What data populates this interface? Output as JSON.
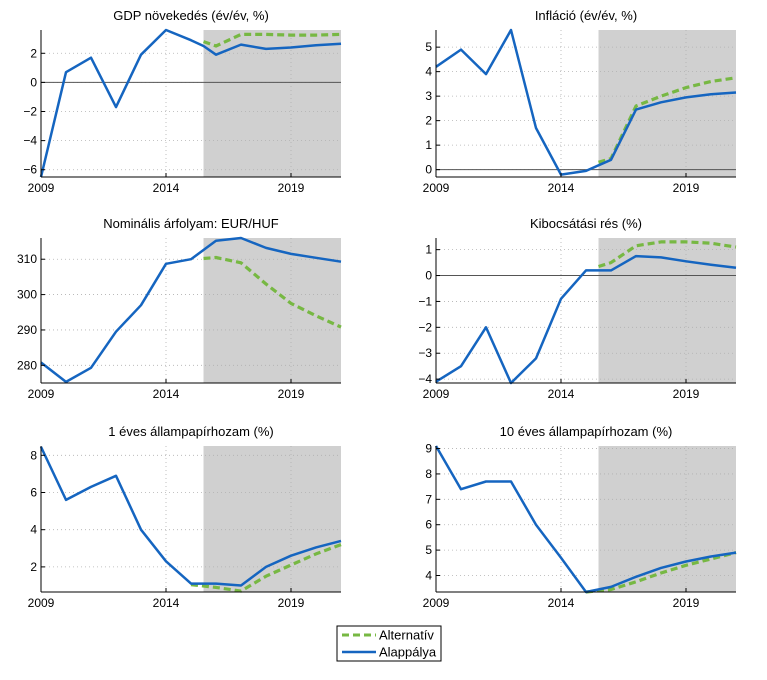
{
  "colors": {
    "alternative": "#77b843",
    "baseline": "#1565c0",
    "forecast_shade": "#d0d0d0",
    "zero_line": "#555555",
    "grid": "#b0b0b0"
  },
  "legend": {
    "alternative_label": "Alternatív",
    "baseline_label": "Alappálya"
  },
  "chart_data": [
    {
      "type": "line",
      "title": "GDP növekedés (év/év, %)",
      "xlabel": "",
      "ylabel": "",
      "xlim": [
        2009,
        2021
      ],
      "ylim": [
        -6.5,
        3.6
      ],
      "yticks": [
        -6,
        -4,
        -2,
        0,
        2
      ],
      "xticks": [
        2009,
        2014,
        2019
      ],
      "zero_line": true,
      "forecast_start": 2015.5,
      "grid": true,
      "series": [
        {
          "name": "Alternatív",
          "style": "dashed",
          "x": [
            2015.5,
            2016,
            2017,
            2018,
            2019,
            2020,
            2021
          ],
          "y": [
            2.8,
            2.5,
            3.3,
            3.3,
            3.25,
            3.25,
            3.3
          ]
        },
        {
          "name": "Alappálya",
          "style": "solid",
          "x": [
            2009,
            2010,
            2011,
            2012,
            2013,
            2014,
            2015,
            2015.5,
            2016,
            2017,
            2018,
            2019,
            2020,
            2021
          ],
          "y": [
            -6.5,
            0.7,
            1.7,
            -1.7,
            1.9,
            3.6,
            2.9,
            2.5,
            1.9,
            2.6,
            2.3,
            2.4,
            2.55,
            2.65
          ]
        }
      ]
    },
    {
      "type": "line",
      "title": "Infláció (év/év, %)",
      "xlabel": "",
      "ylabel": "",
      "xlim": [
        2009,
        2021
      ],
      "ylim": [
        -0.3,
        5.7
      ],
      "yticks": [
        0,
        1,
        2,
        3,
        4,
        5
      ],
      "xticks": [
        2009,
        2014,
        2019
      ],
      "zero_line": true,
      "forecast_start": 2015.5,
      "grid": true,
      "series": [
        {
          "name": "Alternatív",
          "style": "dashed",
          "x": [
            2015.5,
            2016,
            2017,
            2018,
            2019,
            2020,
            2021
          ],
          "y": [
            0.3,
            0.45,
            2.6,
            3.0,
            3.35,
            3.6,
            3.75
          ]
        },
        {
          "name": "Alappálya",
          "style": "solid",
          "x": [
            2009,
            2010,
            2011,
            2012,
            2013,
            2014,
            2015,
            2016,
            2017,
            2018,
            2019,
            2020,
            2021
          ],
          "y": [
            4.2,
            4.9,
            3.9,
            5.7,
            1.7,
            -0.2,
            -0.05,
            0.4,
            2.45,
            2.75,
            2.95,
            3.08,
            3.15
          ]
        }
      ]
    },
    {
      "type": "line",
      "title": "Nominális árfolyam: EUR/HUF",
      "xlabel": "",
      "ylabel": "",
      "xlim": [
        2009,
        2021
      ],
      "ylim": [
        275,
        316
      ],
      "yticks": [
        280,
        290,
        300,
        310
      ],
      "xticks": [
        2009,
        2014,
        2019
      ],
      "zero_line": false,
      "forecast_start": 2015.5,
      "grid": true,
      "series": [
        {
          "name": "Alternatív",
          "style": "dashed",
          "x": [
            2015.5,
            2016,
            2017,
            2018,
            2019,
            2020,
            2021
          ],
          "y": [
            310.2,
            310.5,
            309.0,
            303.0,
            297.5,
            294.0,
            290.8
          ]
        },
        {
          "name": "Alappálya",
          "style": "solid",
          "x": [
            2009,
            2010,
            2011,
            2012,
            2013,
            2014,
            2015,
            2016,
            2017,
            2018,
            2019,
            2020,
            2021
          ],
          "y": [
            280.8,
            275.3,
            279.3,
            289.5,
            297.0,
            308.7,
            310.0,
            315.2,
            316.0,
            313.2,
            311.5,
            310.4,
            309.3
          ]
        }
      ]
    },
    {
      "type": "line",
      "title": "Kibocsátási rés (%)",
      "xlabel": "",
      "ylabel": "",
      "xlim": [
        2009,
        2021
      ],
      "ylim": [
        -4.15,
        1.45
      ],
      "yticks": [
        -4,
        -3,
        -2,
        -1,
        0,
        1
      ],
      "xticks": [
        2009,
        2014,
        2019
      ],
      "zero_line": true,
      "forecast_start": 2015.5,
      "grid": true,
      "series": [
        {
          "name": "Alternatív",
          "style": "dashed",
          "x": [
            2015.5,
            2016,
            2017,
            2018,
            2019,
            2020,
            2021
          ],
          "y": [
            0.35,
            0.5,
            1.15,
            1.3,
            1.3,
            1.25,
            1.1
          ]
        },
        {
          "name": "Alappálya",
          "style": "solid",
          "x": [
            2009,
            2010,
            2011,
            2012,
            2013,
            2014,
            2015,
            2016,
            2017,
            2018,
            2019,
            2020,
            2021
          ],
          "y": [
            -4.1,
            -3.5,
            -2.0,
            -4.15,
            -3.2,
            -0.9,
            0.2,
            0.2,
            0.75,
            0.7,
            0.55,
            0.42,
            0.3
          ]
        }
      ]
    },
    {
      "type": "line",
      "title": "1 éves állampapírhozam (%)",
      "xlabel": "",
      "ylabel": "",
      "xlim": [
        2009,
        2021
      ],
      "ylim": [
        0.65,
        8.5
      ],
      "yticks": [
        2,
        4,
        6,
        8
      ],
      "xticks": [
        2009,
        2014,
        2019
      ],
      "zero_line": false,
      "forecast_start": 2015.5,
      "grid": true,
      "series": [
        {
          "name": "Alternatív",
          "style": "dashed",
          "x": [
            2015,
            2016,
            2017,
            2018,
            2019,
            2020,
            2021
          ],
          "y": [
            1.05,
            0.9,
            0.7,
            1.5,
            2.1,
            2.7,
            3.2
          ]
        },
        {
          "name": "Alappálya",
          "style": "solid",
          "x": [
            2009,
            2010,
            2011,
            2012,
            2013,
            2014,
            2015,
            2016,
            2017,
            2018,
            2019,
            2020,
            2021
          ],
          "y": [
            8.45,
            5.6,
            6.3,
            6.9,
            4.0,
            2.3,
            1.1,
            1.1,
            1.0,
            2.0,
            2.6,
            3.05,
            3.4
          ]
        }
      ]
    },
    {
      "type": "line",
      "title": "10 éves állampapírhozam (%)",
      "xlabel": "",
      "ylabel": "",
      "xlim": [
        2009,
        2021
      ],
      "ylim": [
        3.35,
        9.1
      ],
      "yticks": [
        4,
        5,
        6,
        7,
        8,
        9
      ],
      "xticks": [
        2009,
        2014,
        2019
      ],
      "zero_line": false,
      "forecast_start": 2015.5,
      "grid": true,
      "series": [
        {
          "name": "Alternatív",
          "style": "dashed",
          "x": [
            2015,
            2016,
            2017,
            2018,
            2019,
            2020,
            2021
          ],
          "y": [
            3.35,
            3.45,
            3.75,
            4.1,
            4.4,
            4.65,
            4.9
          ]
        },
        {
          "name": "Alappálya",
          "style": "solid",
          "x": [
            2009,
            2010,
            2011,
            2012,
            2013,
            2014,
            2015,
            2016,
            2017,
            2018,
            2019,
            2020,
            2021
          ],
          "y": [
            9.1,
            7.4,
            7.7,
            7.7,
            6.0,
            4.7,
            3.35,
            3.55,
            3.95,
            4.3,
            4.55,
            4.75,
            4.9
          ]
        }
      ]
    }
  ]
}
